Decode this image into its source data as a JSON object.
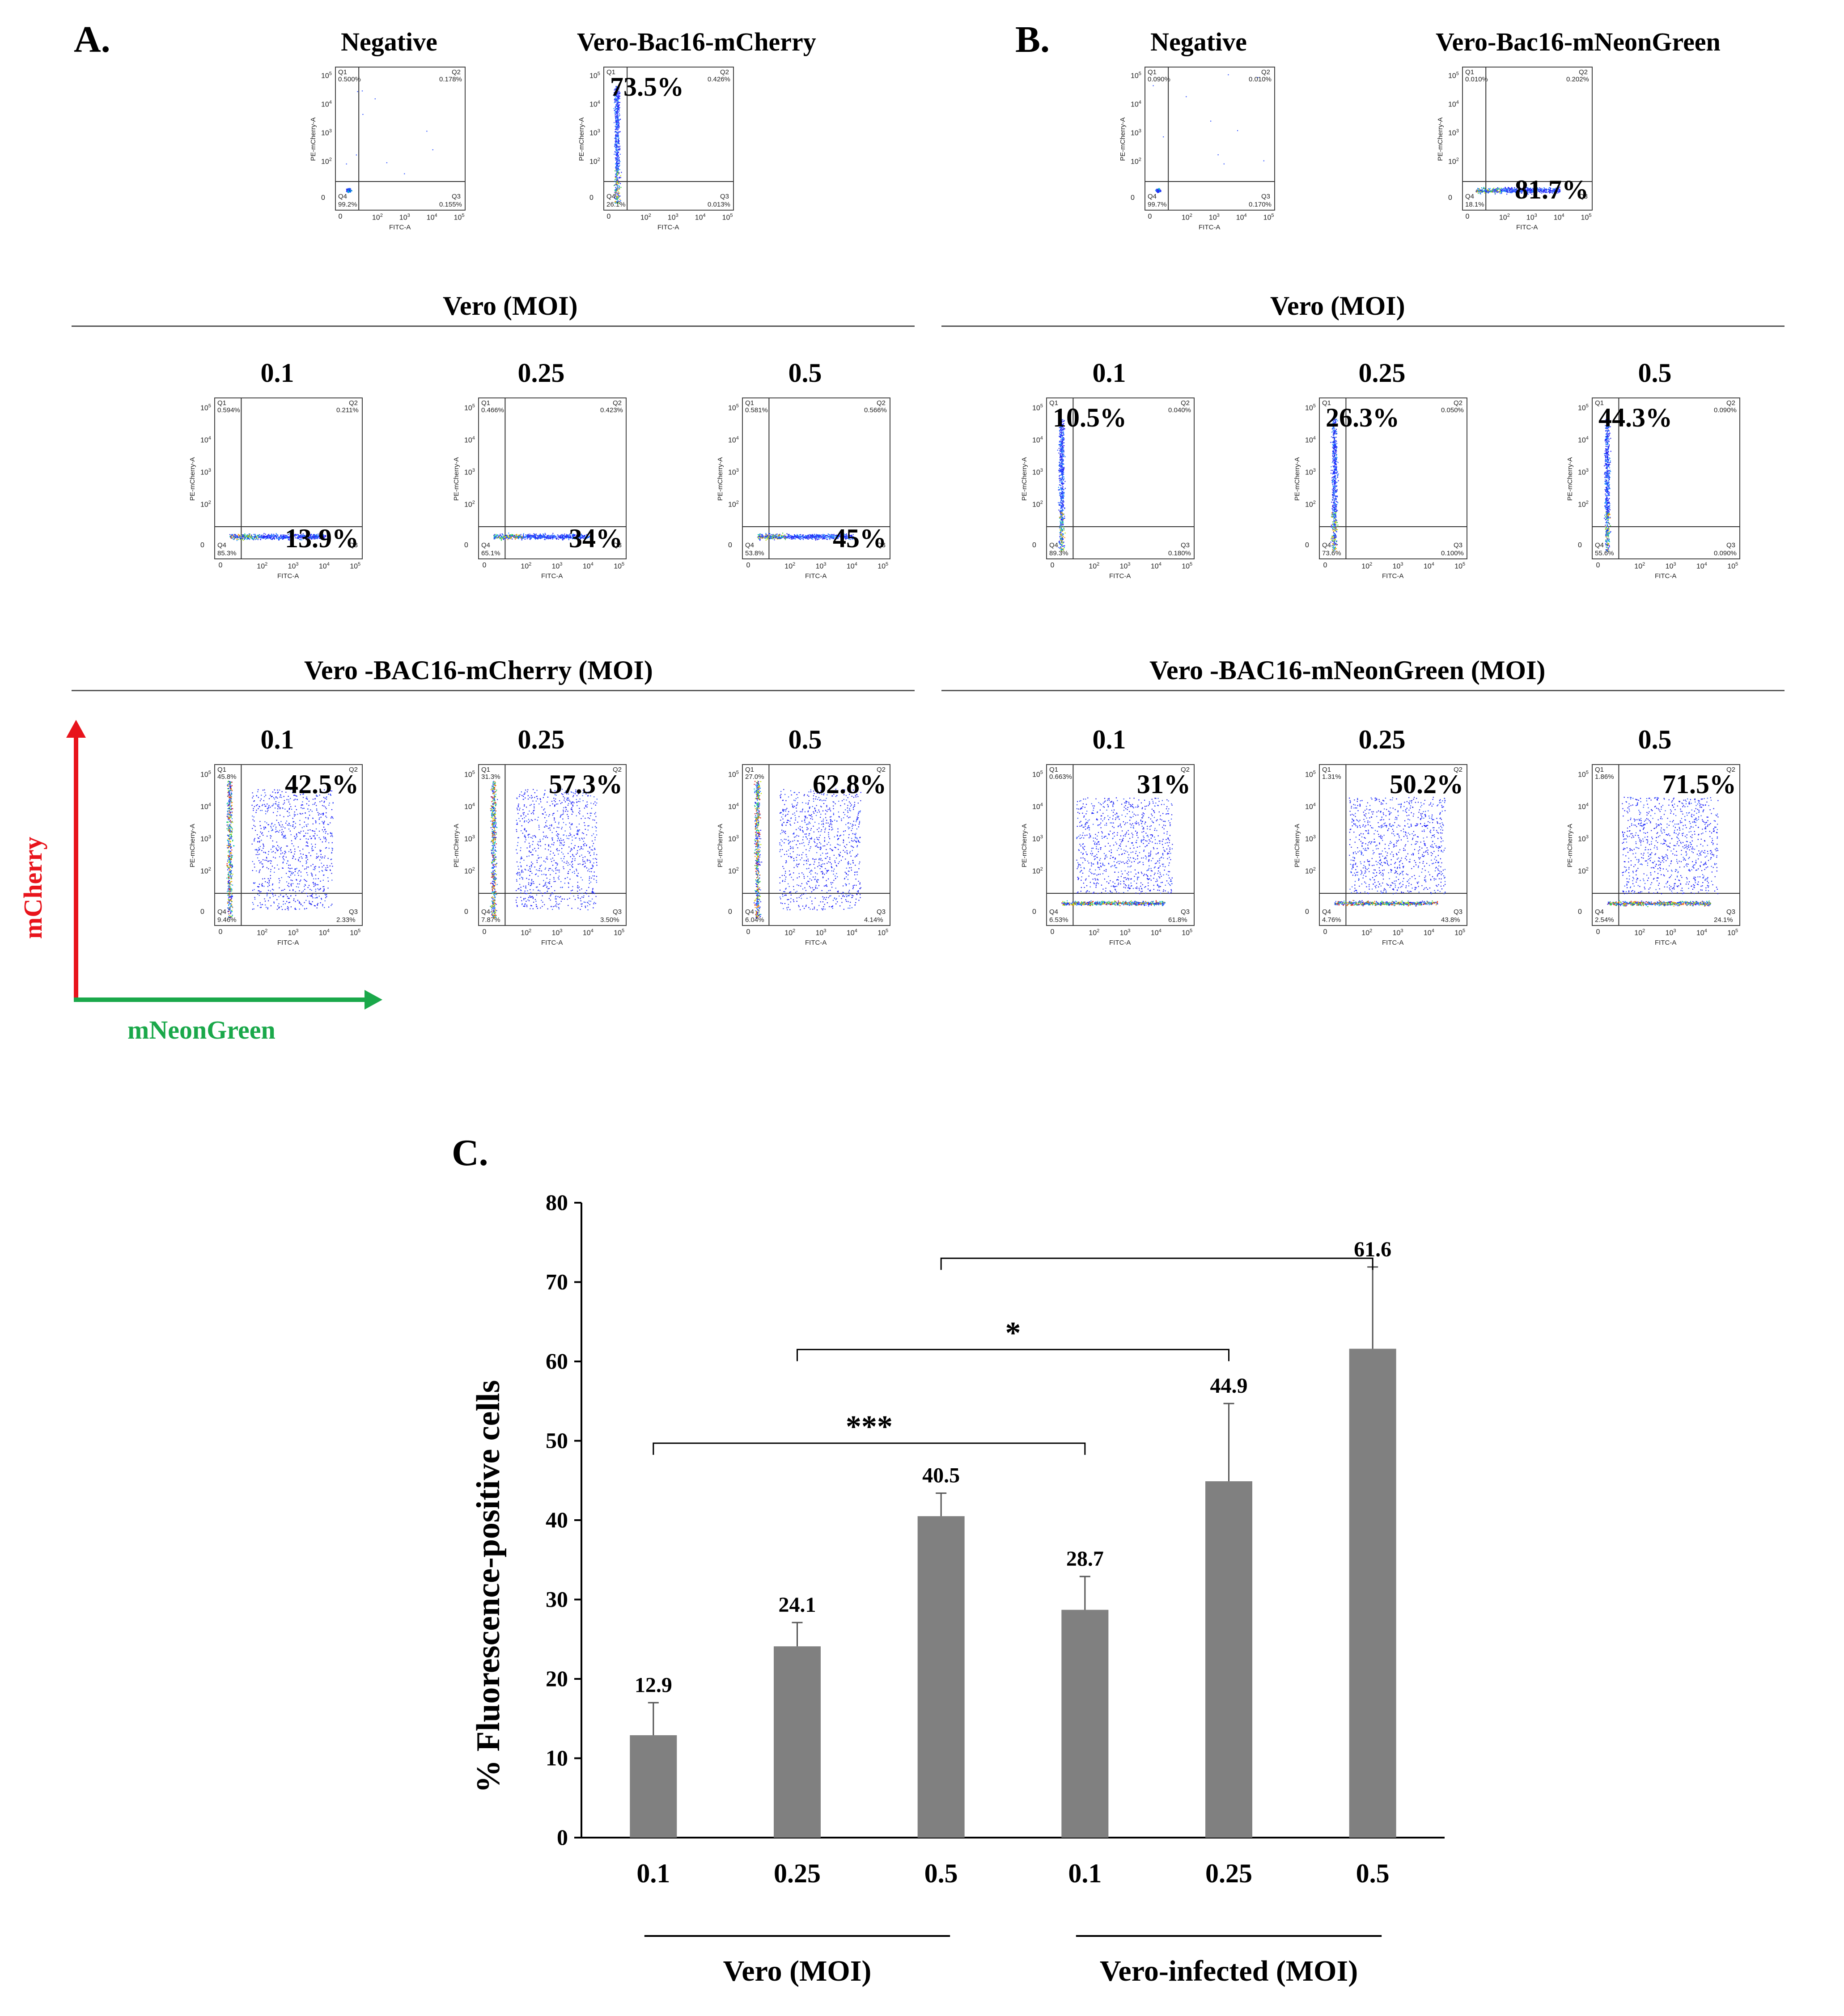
{
  "panels": {
    "a": "A.",
    "b": "B.",
    "c": "C."
  },
  "axis_labels": {
    "x": "FITC-A",
    "y": "PE-mCherry-A",
    "x_ticks": [
      "0",
      "10",
      "10",
      "10",
      "10"
    ],
    "x_tick_exp": [
      "",
      "2",
      "3",
      "4",
      "5"
    ],
    "y_ticks": [
      "0",
      "10",
      "10",
      "10",
      "10"
    ],
    "y_tick_exp": [
      "",
      "2",
      "3",
      "4",
      "5"
    ]
  },
  "quadrant_ids": {
    "q1": "Q1",
    "q2": "Q2",
    "q3": "Q3",
    "q4": "Q4"
  },
  "section_titles": {
    "a_vero": "Vero (MOI)",
    "a_vero_bac": "Vero -BAC16-mCherry (MOI)",
    "b_vero": "Vero (MOI)",
    "b_vero_bac": "Vero -BAC16-mNeonGreen (MOI)"
  },
  "arrows": {
    "y_label": "mCherry",
    "x_label": "mNeonGreen",
    "y_color": "#e8141c",
    "x_color": "#1aa84a"
  },
  "plots": [
    {
      "id": "a-negative",
      "title": "Negative",
      "q1": "0.500%",
      "q2": "0.178%",
      "q3": "0.155%",
      "q4": "99.2%",
      "big": "",
      "big_pos": "",
      "pattern": "negative"
    },
    {
      "id": "a-mcherry",
      "title": "Vero-Bac16-mCherry",
      "q1": "",
      "q2": "0.426%",
      "q3": "0.013%",
      "q4": "26.1%",
      "big": "73.5%",
      "big_pos": "q1",
      "pattern": "vertical"
    },
    {
      "id": "b-negative",
      "title": "Negative",
      "q1": "0.090%",
      "q2": "0.010%",
      "q3": "0.170%",
      "q4": "99.7%",
      "big": "",
      "big_pos": "",
      "pattern": "negative"
    },
    {
      "id": "b-neongreen",
      "title": "Vero-Bac16-mNeonGreen",
      "q1": "0.010%",
      "q2": "0.202%",
      "q3": "",
      "q4": "18.1%",
      "big": "81.7%",
      "big_pos": "q3",
      "pattern": "horizontal"
    },
    {
      "id": "a-vero-01",
      "title": "0.1",
      "q1": "0.594%",
      "q2": "0.211%",
      "q3": "",
      "q4": "85.3%",
      "big": "13.9%",
      "big_pos": "q3",
      "pattern": "horizontal"
    },
    {
      "id": "a-vero-025",
      "title": "0.25",
      "q1": "0.466%",
      "q2": "0.423%",
      "q3": "",
      "q4": "65.1%",
      "big": "34%",
      "big_pos": "q3",
      "pattern": "horizontal"
    },
    {
      "id": "a-vero-05",
      "title": "0.5",
      "q1": "0.581%",
      "q2": "0.566%",
      "q3": "",
      "q4": "53.8%",
      "big": "45%",
      "big_pos": "q3",
      "pattern": "horizontal"
    },
    {
      "id": "b-vero-01",
      "title": "0.1",
      "q1": "",
      "q2": "0.040%",
      "q3": "0.180%",
      "q4": "89.3%",
      "big": "10.5%",
      "big_pos": "q1",
      "pattern": "vertical"
    },
    {
      "id": "b-vero-025",
      "title": "0.25",
      "q1": "",
      "q2": "0.050%",
      "q3": "0.100%",
      "q4": "73.6%",
      "big": "26.3%",
      "big_pos": "q1",
      "pattern": "vertical"
    },
    {
      "id": "b-vero-05",
      "title": "0.5",
      "q1": "",
      "q2": "0.090%",
      "q3": "0.090%",
      "q4": "55.6%",
      "big": "44.3%",
      "big_pos": "q1",
      "pattern": "vertical"
    },
    {
      "id": "a-bac-01",
      "title": "0.1",
      "q1": "45.8%",
      "q2": "",
      "q3": "2.33%",
      "q4": "9.46%",
      "big": "42.5%",
      "big_pos": "q2",
      "pattern": "double-v"
    },
    {
      "id": "a-bac-025",
      "title": "0.25",
      "q1": "31.3%",
      "q2": "",
      "q3": "3.50%",
      "q4": "7.87%",
      "big": "57.3%",
      "big_pos": "q2",
      "pattern": "double-v"
    },
    {
      "id": "a-bac-05",
      "title": "0.5",
      "q1": "27.0%",
      "q2": "",
      "q3": "4.14%",
      "q4": "6.04%",
      "big": "62.8%",
      "big_pos": "q2",
      "pattern": "double-v"
    },
    {
      "id": "b-bac-01",
      "title": "0.1",
      "q1": "0.663%",
      "q2": "",
      "q3": "61.8%",
      "q4": "6.53%",
      "big": "31%",
      "big_pos": "q2",
      "pattern": "double-h"
    },
    {
      "id": "b-bac-025",
      "title": "0.25",
      "q1": "1.31%",
      "q2": "",
      "q3": "43.8%",
      "q4": "4.76%",
      "big": "50.2%",
      "big_pos": "q2",
      "pattern": "double-h"
    },
    {
      "id": "b-bac-05",
      "title": "0.5",
      "q1": "1.86%",
      "q2": "",
      "q3": "24.1%",
      "q4": "2.54%",
      "big": "71.5%",
      "big_pos": "q2",
      "pattern": "double-h"
    }
  ],
  "chart_data": {
    "type": "bar",
    "ylabel": "% Fluorescence-positive cells",
    "ylim": [
      0,
      80
    ],
    "yticks": [
      0,
      10,
      20,
      30,
      40,
      50,
      60,
      70,
      80
    ],
    "categories": [
      "0.1",
      "0.25",
      "0.5",
      "0.1",
      "0.25",
      "0.5"
    ],
    "values": [
      12.9,
      24.1,
      40.5,
      28.7,
      44.9,
      61.6
    ],
    "value_labels": [
      "12.9",
      "24.1",
      "40.5",
      "28.7",
      "44.9",
      "61.6"
    ],
    "errors": [
      4.1,
      3.0,
      2.9,
      4.2,
      9.8,
      10.3
    ],
    "bar_color": "#808080",
    "groups": [
      {
        "label": "Vero (MOI)",
        "from": 0,
        "to": 2
      },
      {
        "label": "Vero-infected (MOI)",
        "from": 3,
        "to": 5
      }
    ],
    "significance": [
      {
        "from": 0,
        "to": 3,
        "label": "***"
      },
      {
        "from": 1,
        "to": 4,
        "label": "*"
      },
      {
        "from": 2,
        "to": 5,
        "label": ""
      }
    ]
  }
}
